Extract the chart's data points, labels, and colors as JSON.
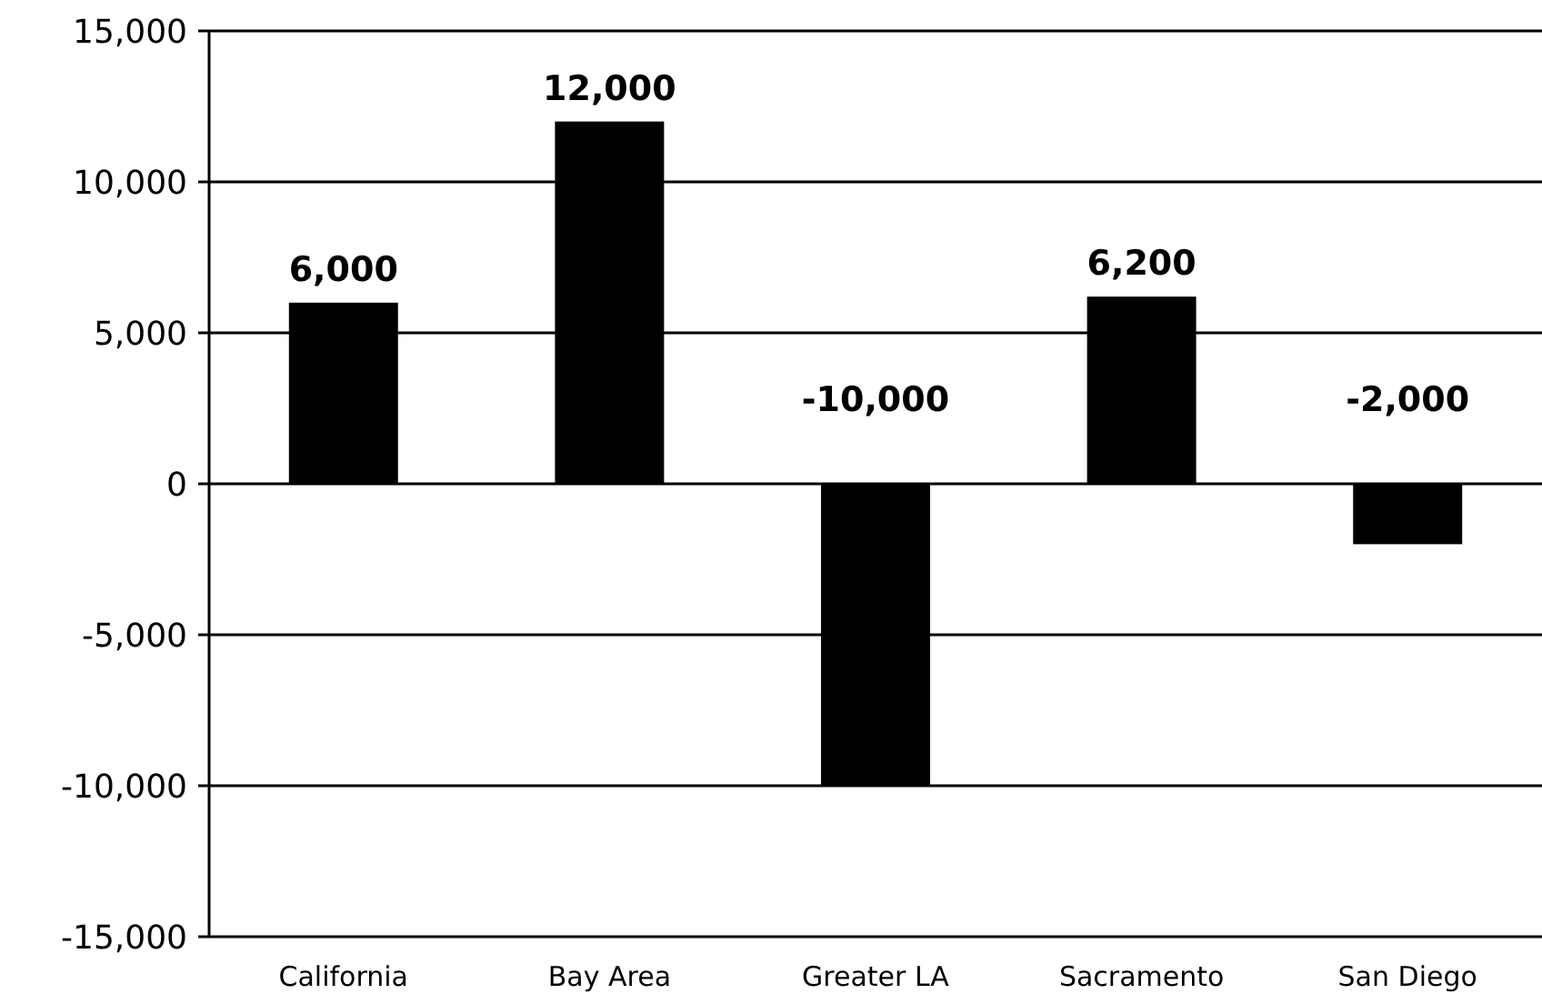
{
  "chart_data": {
    "type": "bar",
    "categories": [
      "California",
      "Bay Area",
      "Greater LA",
      "Sacramento",
      "San Diego"
    ],
    "values": [
      6000,
      12000,
      -10000,
      6200,
      -2000
    ],
    "color": "#000000",
    "ylim": [
      -15000,
      15000
    ],
    "yticks": [
      {
        "value": -15000,
        "label": "-15,000"
      },
      {
        "value": -10000,
        "label": "-10,000"
      },
      {
        "value": -5000,
        "label": "-5,000"
      },
      0,
      {
        "value": 5000,
        "label": "5,000"
      },
      {
        "value": 10000,
        "label": "10,000"
      },
      {
        "value": 15000,
        "label": "15,000"
      }
    ],
    "grid": "y",
    "value_labels": [
      "6,000",
      "12,000",
      "-10,000",
      "6,200",
      "-2,000"
    ]
  }
}
